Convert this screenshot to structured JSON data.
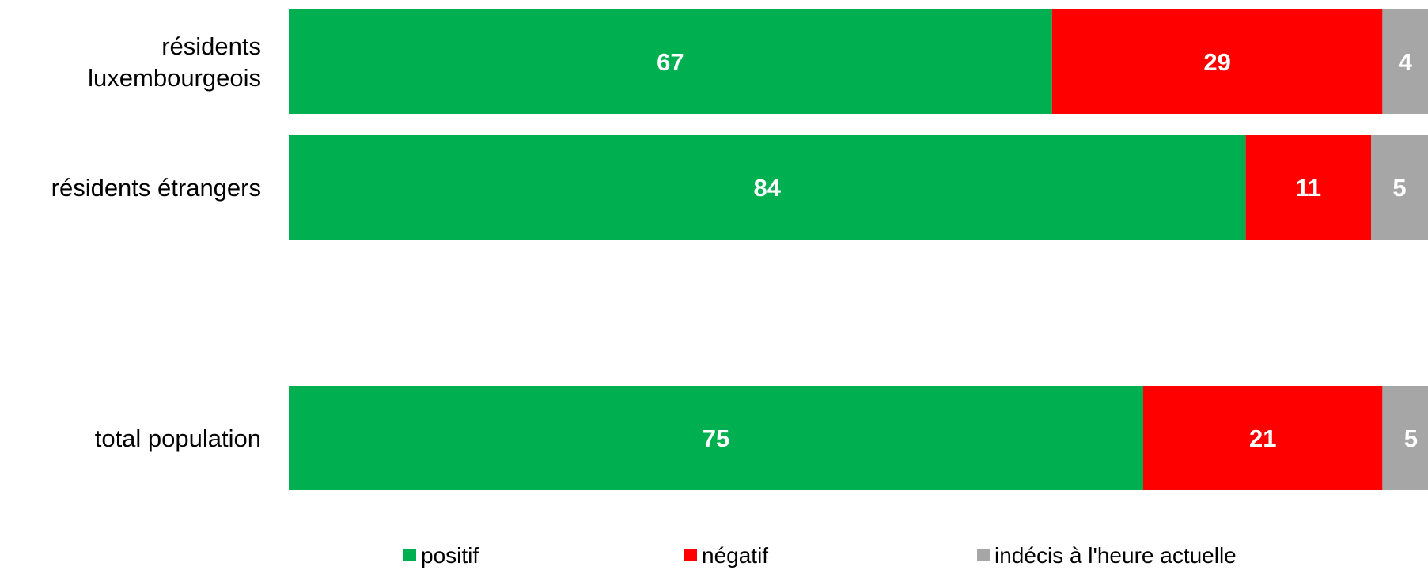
{
  "chart_data": {
    "type": "bar",
    "orientation": "horizontal",
    "stacked": true,
    "categories": [
      [
        "résidents",
        "luxembourgeois"
      ],
      [
        "résidents étrangers"
      ],
      [
        "total population"
      ]
    ],
    "series": [
      {
        "name": "positif",
        "color": "#00b050",
        "values": [
          67,
          84,
          75
        ]
      },
      {
        "name": "négatif",
        "color": "#ff0000",
        "values": [
          29,
          11,
          21
        ]
      },
      {
        "name": "indécis à l'heure actuelle",
        "color": "#a6a6a6",
        "values": [
          4,
          5,
          5
        ]
      }
    ],
    "xlim": [
      0,
      100
    ],
    "grid": false,
    "legend_position": "bottom"
  }
}
